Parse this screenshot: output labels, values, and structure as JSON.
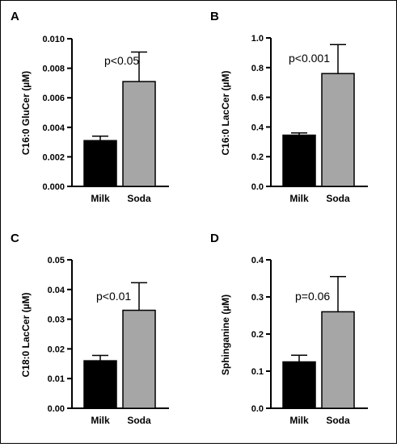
{
  "chart_data": [
    {
      "type": "bar",
      "panel": "A",
      "categories": [
        "Milk",
        "Soda"
      ],
      "values": [
        0.0031,
        0.0071
      ],
      "errors": [
        0.0003,
        0.002
      ],
      "colors": [
        "#000000",
        "#a6a6a6"
      ],
      "ylabel": "C16:0 GluCer (µM)",
      "ylim": [
        0,
        0.01
      ],
      "yticks": [
        "0.000",
        "0.002",
        "0.004",
        "0.006",
        "0.008",
        "0.010"
      ],
      "annotation": "p<0.05"
    },
    {
      "type": "bar",
      "panel": "B",
      "categories": [
        "Milk",
        "Soda"
      ],
      "values": [
        0.345,
        0.76
      ],
      "errors": [
        0.015,
        0.195
      ],
      "colors": [
        "#000000",
        "#a6a6a6"
      ],
      "ylabel": "C16:0 LacCer (µM)",
      "ylim": [
        0,
        1.0
      ],
      "yticks": [
        "0.0",
        "0.2",
        "0.4",
        "0.6",
        "0.8",
        "1.0"
      ],
      "annotation": "p<0.001"
    },
    {
      "type": "bar",
      "panel": "C",
      "categories": [
        "Milk",
        "Soda"
      ],
      "values": [
        0.016,
        0.033
      ],
      "errors": [
        0.0018,
        0.0093
      ],
      "colors": [
        "#000000",
        "#a6a6a6"
      ],
      "ylabel": "C18:0 LacCer (µM)",
      "ylim": [
        0,
        0.05
      ],
      "yticks": [
        "0.00",
        "0.01",
        "0.02",
        "0.03",
        "0.04",
        "0.05"
      ],
      "annotation": "p<0.01"
    },
    {
      "type": "bar",
      "panel": "D",
      "categories": [
        "Milk",
        "Soda"
      ],
      "values": [
        0.125,
        0.26
      ],
      "errors": [
        0.018,
        0.095
      ],
      "colors": [
        "#000000",
        "#a6a6a6"
      ],
      "ylabel": "Sphinganine (µM)",
      "ylim": [
        0,
        0.4
      ],
      "yticks": [
        "0.0",
        "0.1",
        "0.2",
        "0.3",
        "0.4"
      ],
      "annotation": "p=0.06"
    }
  ]
}
